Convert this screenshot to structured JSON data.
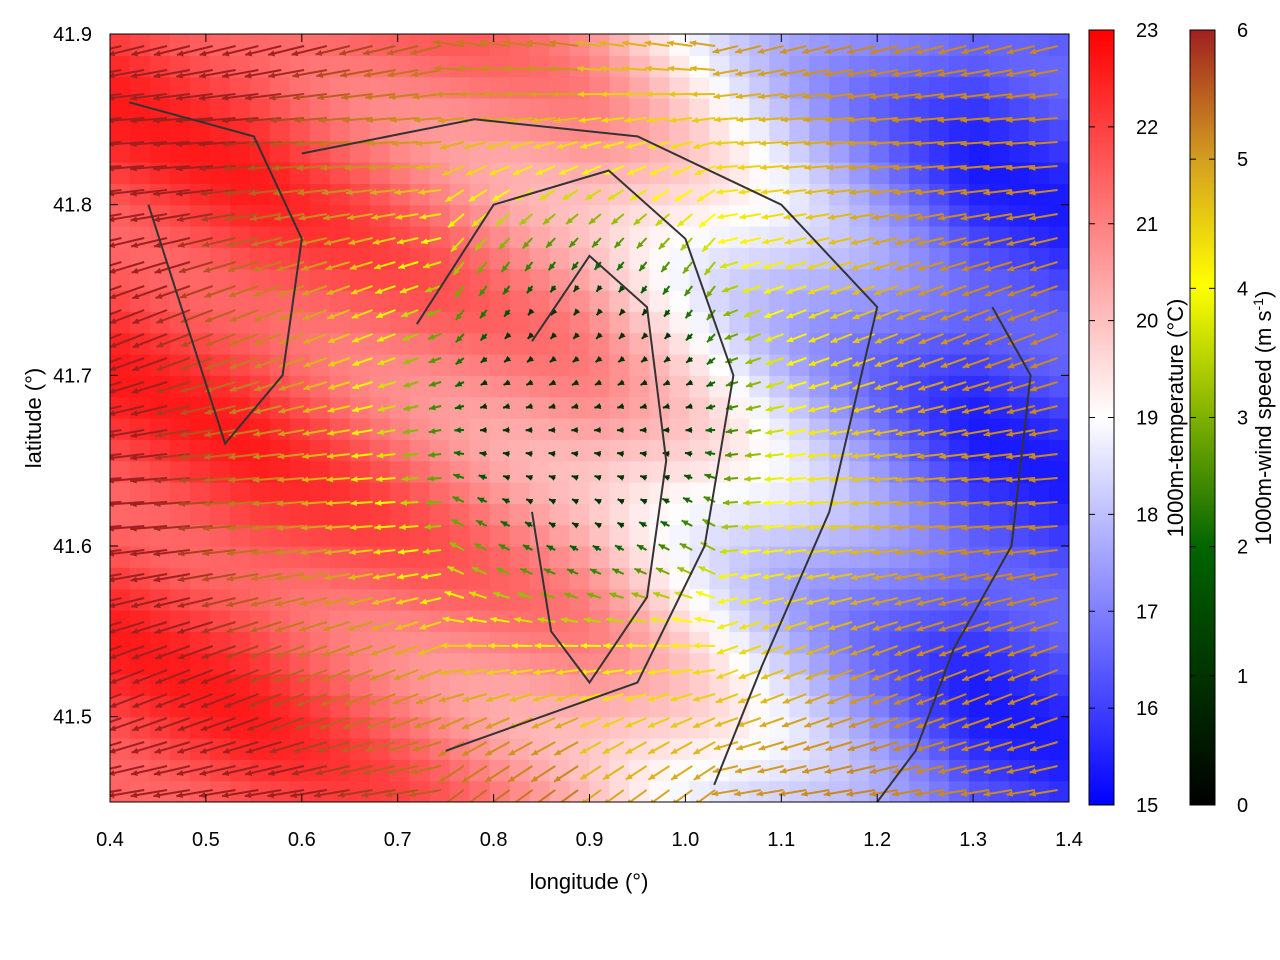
{
  "chart_data": {
    "type": "heatmap",
    "title": "",
    "xlabel": "longitude (°)",
    "ylabel": "latitude (°)",
    "xlim": [
      0.4,
      1.4
    ],
    "ylim": [
      41.45,
      41.9
    ],
    "xticks": [
      "0.4",
      "0.5",
      "0.6",
      "0.7",
      "0.8",
      "0.9",
      "1.0",
      "1.1",
      "1.2",
      "1.3",
      "1.4"
    ],
    "yticks": [
      "41.5",
      "41.6",
      "41.7",
      "41.8",
      "41.9"
    ],
    "grid": false,
    "temperature_colorbar": {
      "label": "1000m-temperature (°C)",
      "range": [
        15,
        23
      ],
      "ticks": [
        "15",
        "16",
        "17",
        "18",
        "19",
        "20",
        "21",
        "22",
        "23"
      ],
      "colors": [
        "#0000ff",
        "#ffffff",
        "#ff0000"
      ]
    },
    "wind_colorbar": {
      "label_main": "1000m-wind speed (m s",
      "label_sup": "-1",
      "label_end": ")",
      "range": [
        0,
        6
      ],
      "ticks": [
        "0",
        "1",
        "2",
        "3",
        "4",
        "5",
        "6"
      ],
      "colors": [
        "#000000",
        "#006400",
        "#7fb000",
        "#ffff00",
        "#d4a020",
        "#c07020",
        "#a02020"
      ]
    },
    "temperature_field_summary": {
      "west_edge_lon_0.4_0.55": 22,
      "central_ridge_lon_0.85_0.95": 20.5,
      "east_edge_lon_1.3_1.4": 16
    },
    "wind_speed_field_summary": {
      "west_region": 6,
      "central_calm_lon_0.9_lat_41.7": 0.5,
      "ring_around_center": 3,
      "east_region": 4.5
    },
    "contour_color": "#333333"
  }
}
